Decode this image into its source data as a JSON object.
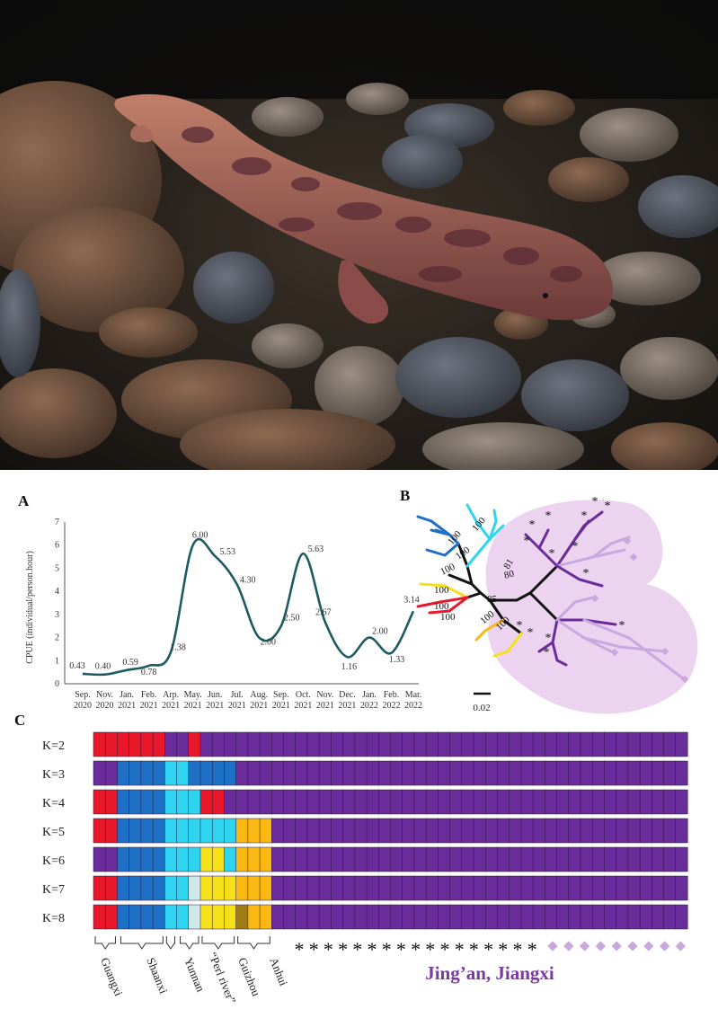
{
  "panels": {
    "a": "A",
    "b": "B",
    "c": "C"
  },
  "chart_data": {
    "type": "line",
    "ylabel": "CPUE (individual/person.hour)",
    "ylim": [
      0,
      7
    ],
    "yticks": [
      "0",
      "1",
      "2",
      "3",
      "4",
      "5",
      "6",
      "7"
    ],
    "months": [
      "Sep.",
      "Nov.",
      "Jan.",
      "Feb.",
      "Arp.",
      "May.",
      "Jun.",
      "Jul.",
      "Aug.",
      "Sep.",
      "Oct.",
      "Nov.",
      "Dec.",
      "Jan.",
      "Feb.",
      "Mar."
    ],
    "years": [
      "2020",
      "2020",
      "2021",
      "2021",
      "2021",
      "2021",
      "2021",
      "2021",
      "2021",
      "2021",
      "2021",
      "2021",
      "2021",
      "2022",
      "2022",
      "2022"
    ],
    "values": [
      0.43,
      0.4,
      0.59,
      0.78,
      1.38,
      6.0,
      5.53,
      4.3,
      2.0,
      2.5,
      5.63,
      2.67,
      1.16,
      2.0,
      1.33,
      3.14
    ],
    "labels": [
      "0.43",
      "0.40",
      "0.59",
      "0.78",
      "1.38",
      "6.00",
      "5.53",
      "4.30",
      "2.00",
      "2.50",
      "5.63",
      "2.67",
      "1.16",
      "2.00",
      "1.33",
      "3.14"
    ],
    "line_color": "#1e5a64"
  },
  "tree": {
    "bootstrap": [
      "100",
      "100",
      "100",
      "100",
      "100",
      "100",
      "100",
      "81",
      "80",
      "85",
      "100",
      "100"
    ],
    "scale_label": "0.02",
    "highlight_color": "#ecd4f0"
  },
  "structure": {
    "k_labels": [
      "K=2",
      "K=3",
      "K=4",
      "K=5",
      "K=6",
      "K=7",
      "K=8"
    ],
    "n_individuals": 50,
    "colors": {
      "purple": "#6a2c9a",
      "red": "#e8182a",
      "blue": "#1e6fc6",
      "cyan": "#2ed4f0",
      "yellow": "#f6e019",
      "orange": "#f9b812",
      "olive": "#a07c16",
      "pale": "#cfe8e8"
    },
    "groups": [
      "Guangxi",
      "Shaanxi",
      "Yunnan",
      "“Perl river”",
      "Guizhou",
      "Anhui"
    ],
    "region_label": "Jing’an, Jiangxi",
    "star_glyph": "*",
    "star_count": 17,
    "diamond_count": 9,
    "label_color": "#7a3aa0",
    "diamond_color": "#c9a8e0"
  }
}
